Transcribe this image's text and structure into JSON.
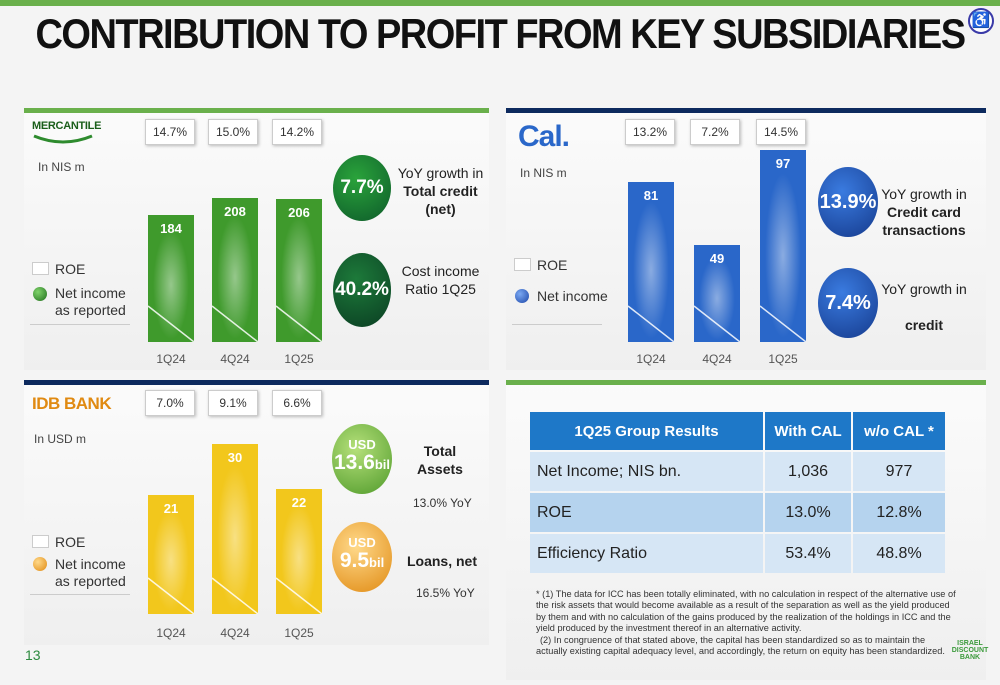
{
  "page": {
    "title": "CONTRIBUTION TO PROFIT FROM KEY SUBSIDIARIES",
    "page_number": "13",
    "bank_logo": [
      "ISRAEL",
      "DISCOUNT",
      "BANK"
    ]
  },
  "mercantile": {
    "logo": "MERCANTILE",
    "unit": "In NIS m",
    "roe": [
      "14.7%",
      "15.0%",
      "14.2%"
    ],
    "legend_roe": "ROE",
    "legend_series": [
      "Net income",
      "as reported"
    ],
    "kpi1_value": "7.7%",
    "kpi1_text": [
      "YoY growth in",
      "Total credit",
      "(net)"
    ],
    "kpi2_value": "40.2%",
    "kpi2_text": [
      "Cost income",
      "Ratio 1Q25"
    ]
  },
  "cal": {
    "logo": "Cal.",
    "unit": "In NIS m",
    "roe": [
      "13.2%",
      "7.2%",
      "14.5%"
    ],
    "legend_roe": "ROE",
    "legend_series": [
      "Net income"
    ],
    "kpi1_value": "13.9%",
    "kpi1_text": [
      "YoY growth in",
      "Credit card",
      "transactions"
    ],
    "kpi2_value": "7.4%",
    "kpi2_text": [
      "YoY growth in",
      "credit"
    ]
  },
  "idb": {
    "logo": "IDB BANK",
    "unit": "In USD m",
    "roe": [
      "7.0%",
      "9.1%",
      "6.6%"
    ],
    "legend_roe": "ROE",
    "legend_series": [
      "Net income",
      "as reported"
    ],
    "kpi1_currency": "USD",
    "kpi1_value": "13.6",
    "kpi1_suffix": "bil",
    "kpi1_label": [
      "Total",
      "Assets"
    ],
    "kpi1_note": "13.0% YoY",
    "kpi2_currency": "USD",
    "kpi2_value": "9.5",
    "kpi2_suffix": "bil",
    "kpi2_label": "Loans, net",
    "kpi2_note": "16.5% YoY"
  },
  "chart_data": [
    {
      "type": "bar",
      "categories": [
        "1Q24",
        "4Q24",
        "1Q25"
      ],
      "values": [
        184,
        208,
        206
      ],
      "color": "#3f9a2c"
    },
    {
      "type": "bar",
      "categories": [
        "1Q24",
        "4Q24",
        "1Q25"
      ],
      "values": [
        81,
        49,
        97
      ],
      "color": "#2a67c9"
    },
    {
      "type": "bar",
      "categories": [
        "1Q24",
        "4Q24",
        "1Q25"
      ],
      "values": [
        21,
        30,
        22
      ],
      "color": "#f2c71c"
    }
  ],
  "group_table": {
    "headers": [
      "1Q25 Group Results",
      "With CAL",
      "w/o CAL *"
    ],
    "rows": [
      [
        "Net Income; NIS bn.",
        "1,036",
        "977"
      ],
      [
        "ROE",
        "13.0%",
        "12.8%"
      ],
      [
        "Efficiency Ratio",
        "53.4%",
        "48.8%"
      ]
    ]
  },
  "footnote": {
    "p1": "* (1) The data for ICC has been totally eliminated, with no calculation in respect of the alternative use of the risk assets that would become available as a result of the separation as well as the yield produced by them and with no calculation of the gains produced by the realization of the holdings in ICC and the yield produced by the investment thereof in an alternative activity.",
    "p2": "(2) In congruence of that stated above, the capital has been standardized so as to maintain the actually existing capital adequacy level, and accordingly, the return on equity has been standardized."
  },
  "colors": {
    "green": "#3f9a2c",
    "dark_green": "#145a32",
    "blue": "#2a67c9",
    "dark_blue": "#1c3f8f",
    "yellow": "#f2c71c",
    "header_blue": "#1e78c8"
  }
}
